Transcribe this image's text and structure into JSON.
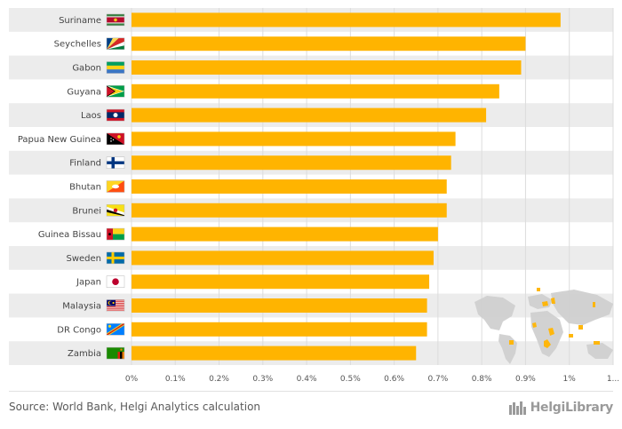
{
  "chart_data": {
    "type": "bar",
    "orientation": "horizontal",
    "categories": [
      "Suriname",
      "Seychelles",
      "Gabon",
      "Guyana",
      "Laos",
      "Papua New Guinea",
      "Finland",
      "Bhutan",
      "Brunei",
      "Guinea Bissau",
      "Sweden",
      "Japan",
      "Malaysia",
      "DR Congo",
      "Zambia"
    ],
    "values": [
      0.98,
      0.9,
      0.89,
      0.84,
      0.81,
      0.74,
      0.73,
      0.72,
      0.72,
      0.7,
      0.69,
      0.68,
      0.675,
      0.675,
      0.65
    ],
    "xlim": [
      0,
      1.1
    ],
    "x_ticks": [
      "0%",
      "0.1%",
      "0.2%",
      "0.3%",
      "0.4%",
      "0.5%",
      "0.6%",
      "0.7%",
      "0.8%",
      "0.9%",
      "1%",
      "1..."
    ],
    "bar_color": "#ffb400",
    "grid": true
  },
  "flags": [
    {
      "country": "Suriname",
      "icon": "suriname-flag-icon",
      "colors": [
        "#377e3f",
        "#ffffff",
        "#b40a2d",
        "#ecc81d"
      ]
    },
    {
      "country": "Seychelles",
      "icon": "seychelles-flag-icon",
      "colors": [
        "#003f87",
        "#fcd856",
        "#d62828",
        "#ffffff",
        "#007a3d"
      ]
    },
    {
      "country": "Gabon",
      "icon": "gabon-flag-icon",
      "colors": [
        "#009e60",
        "#fcd116",
        "#3a75c4"
      ]
    },
    {
      "country": "Guyana",
      "icon": "guyana-flag-icon",
      "colors": [
        "#009e49",
        "#ffffff",
        "#fcd116",
        "#000000",
        "#ce1126"
      ]
    },
    {
      "country": "Laos",
      "icon": "laos-flag-icon",
      "colors": [
        "#ce1126",
        "#002868",
        "#ffffff"
      ]
    },
    {
      "country": "Papua New Guinea",
      "icon": "papua-new-guinea-flag-icon",
      "colors": [
        "#000000",
        "#ce1126",
        "#fcd116",
        "#ffffff"
      ]
    },
    {
      "country": "Finland",
      "icon": "finland-flag-icon",
      "colors": [
        "#ffffff",
        "#003580"
      ]
    },
    {
      "country": "Bhutan",
      "icon": "bhutan-flag-icon",
      "colors": [
        "#ffd520",
        "#ff4e12",
        "#ffffff"
      ]
    },
    {
      "country": "Brunei",
      "icon": "brunei-flag-icon",
      "colors": [
        "#f7e017",
        "#ffffff",
        "#000000",
        "#cf1126"
      ]
    },
    {
      "country": "Guinea Bissau",
      "icon": "guinea-bissau-flag-icon",
      "colors": [
        "#ce1126",
        "#fcd116",
        "#009e49",
        "#000000"
      ]
    },
    {
      "country": "Sweden",
      "icon": "sweden-flag-icon",
      "colors": [
        "#006aa7",
        "#fecc00"
      ]
    },
    {
      "country": "Japan",
      "icon": "japan-flag-icon",
      "colors": [
        "#ffffff",
        "#bc002d"
      ]
    },
    {
      "country": "Malaysia",
      "icon": "malaysia-flag-icon",
      "colors": [
        "#cc0001",
        "#ffffff",
        "#010066",
        "#ffcc00"
      ]
    },
    {
      "country": "DR Congo",
      "icon": "dr-congo-flag-icon",
      "colors": [
        "#007fff",
        "#f7d618",
        "#ce1021"
      ]
    },
    {
      "country": "Zambia",
      "icon": "zambia-flag-icon",
      "colors": [
        "#198a00",
        "#de2010",
        "#000000",
        "#ef7d00"
      ]
    }
  ],
  "footer": {
    "source": "Source: World Bank, Helgi Analytics calculation",
    "brand": "HelgiLibrary"
  },
  "map_inset": {
    "icon": "world-map-icon",
    "land_color": "#d0d0d0",
    "highlight_color": "#ffb400"
  }
}
